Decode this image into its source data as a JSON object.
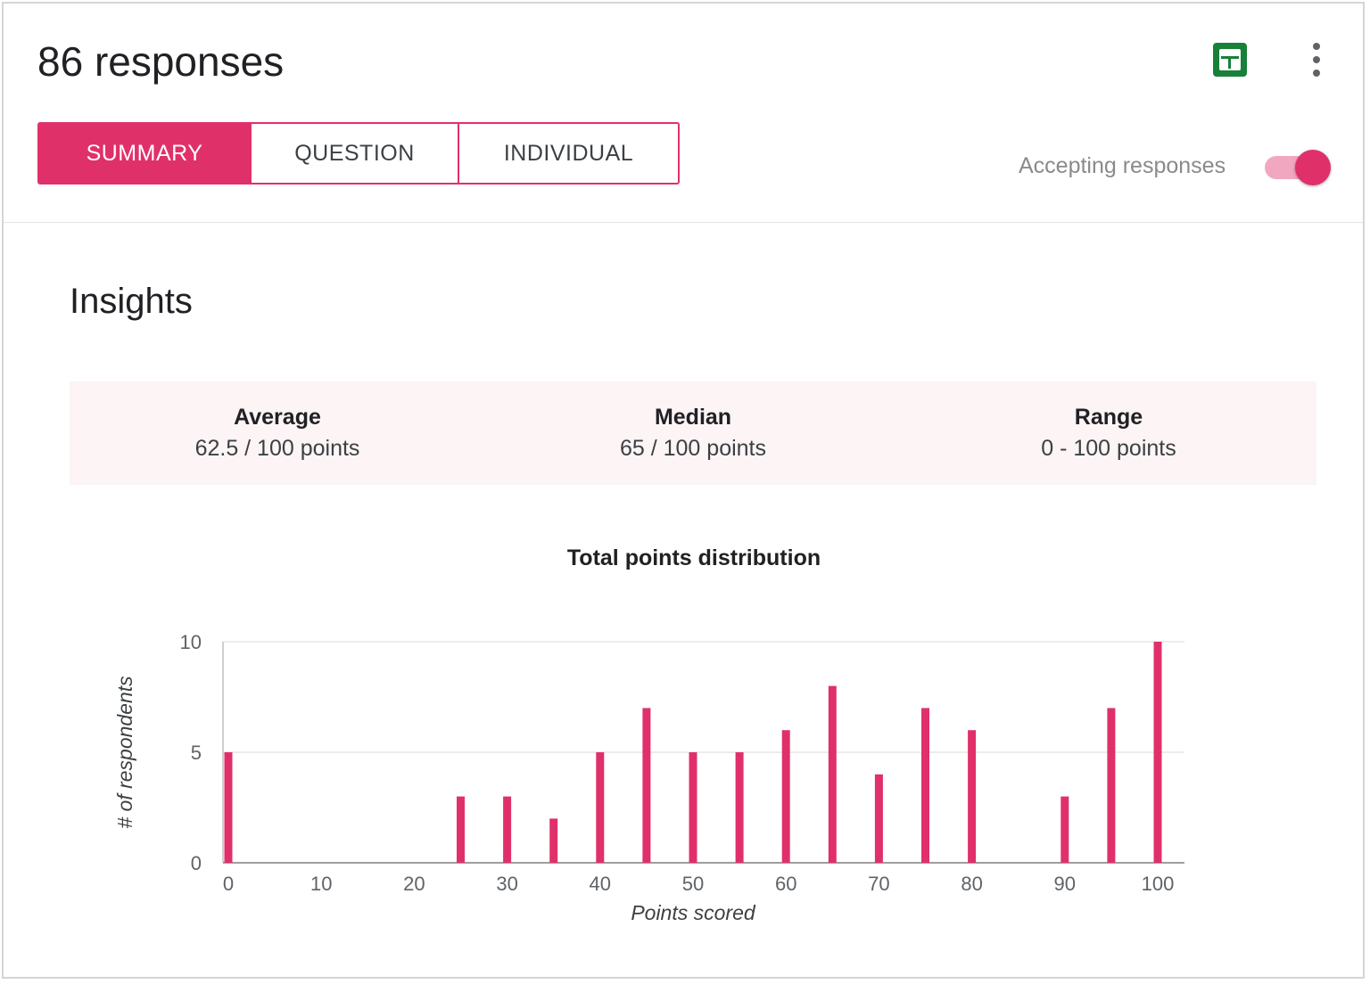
{
  "header": {
    "title": "86 responses",
    "sheets_icon": "sheets-icon",
    "more_icon": "more-vert-icon"
  },
  "tabs": [
    {
      "label": "SUMMARY",
      "active": true
    },
    {
      "label": "QUESTION",
      "active": false
    },
    {
      "label": "INDIVIDUAL",
      "active": false
    }
  ],
  "accepting": {
    "label": "Accepting responses",
    "on": true
  },
  "insights": {
    "title": "Insights",
    "stats": [
      {
        "label": "Average",
        "value": "62.5 / 100 points"
      },
      {
        "label": "Median",
        "value": "65 / 100 points"
      },
      {
        "label": "Range",
        "value": "0 - 100 points"
      }
    ]
  },
  "colors": {
    "accent": "#e0306a",
    "accent_light": "#f2a7c0",
    "sheets_green": "#188038",
    "stats_bg": "#fcf4f5"
  },
  "chart_data": {
    "type": "bar",
    "title": "Total points distribution",
    "xlabel": "Points scored",
    "ylabel": "# of respondents",
    "x": [
      0,
      25,
      30,
      35,
      40,
      45,
      50,
      55,
      60,
      65,
      70,
      75,
      80,
      90,
      95,
      100
    ],
    "values": [
      5,
      3,
      3,
      2,
      5,
      7,
      5,
      5,
      6,
      8,
      4,
      7,
      6,
      3,
      7,
      10
    ],
    "xlim": [
      0,
      100
    ],
    "ylim": [
      0,
      10
    ],
    "xticks": [
      "0",
      "10",
      "20",
      "30",
      "40",
      "50",
      "60",
      "70",
      "80",
      "90",
      "100"
    ],
    "yticks": [
      "0",
      "5",
      "10"
    ],
    "grid": true,
    "bar_color": "#e0306a"
  }
}
